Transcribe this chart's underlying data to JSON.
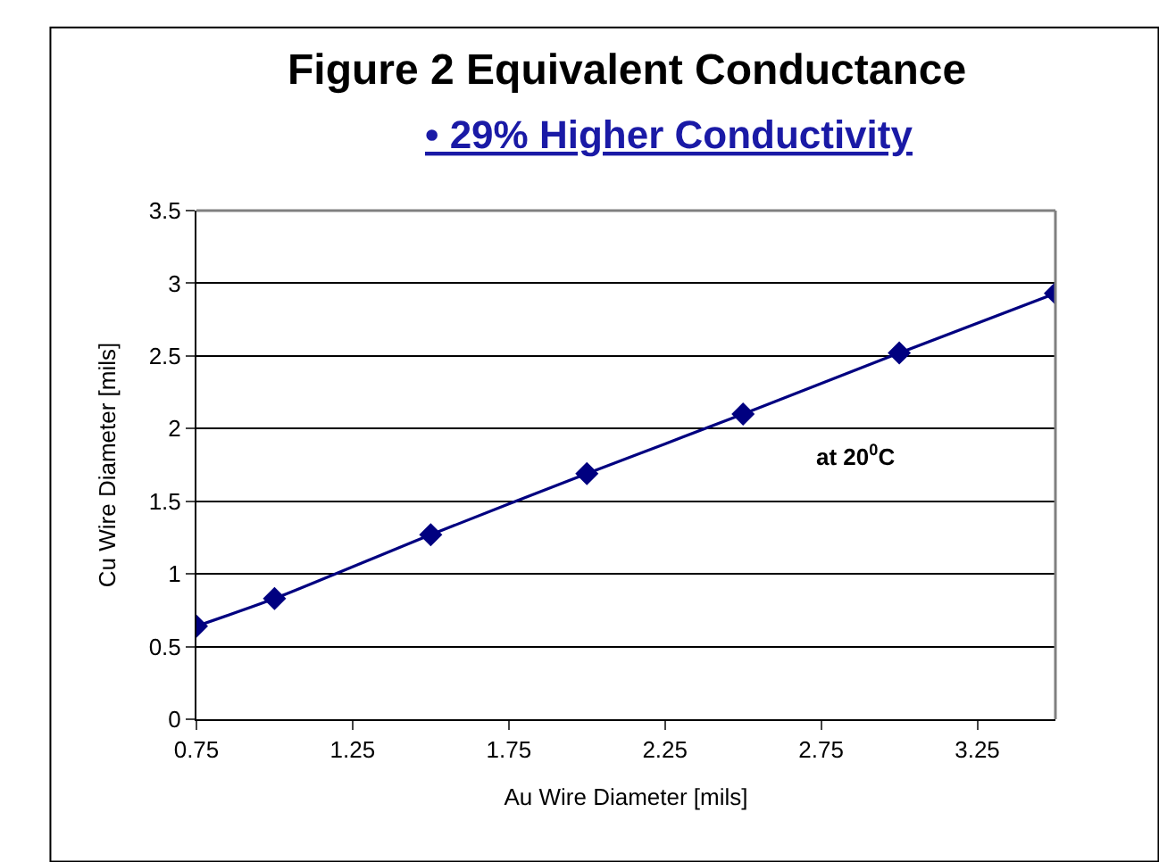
{
  "chart_data": {
    "type": "line",
    "title": "Figure 2 Equivalent Conductance",
    "subtitle": "• 29% Higher Conductivity",
    "xlabel": "Au Wire Diameter [mils]",
    "ylabel": "Cu Wire Diameter [mils]",
    "x": [
      0.75,
      1.0,
      1.5,
      2.0,
      2.5,
      3.0,
      3.5
    ],
    "series": [
      {
        "color": "#000080",
        "values": [
          0.64,
          0.83,
          1.27,
          1.69,
          2.1,
          2.52,
          2.93
        ]
      }
    ],
    "xlim": [
      0.75,
      3.5
    ],
    "xticks": [
      0.75,
      1.25,
      1.75,
      2.25,
      2.75,
      3.25
    ],
    "ylim": [
      0,
      3.5
    ],
    "yticks": [
      0,
      0.5,
      1,
      1.5,
      2,
      2.5,
      3,
      3.5
    ],
    "grid": "y",
    "marker": "diamond",
    "line_style": "solid",
    "legend": false,
    "annotations": [
      "at 20$^{0}$C"
    ]
  }
}
